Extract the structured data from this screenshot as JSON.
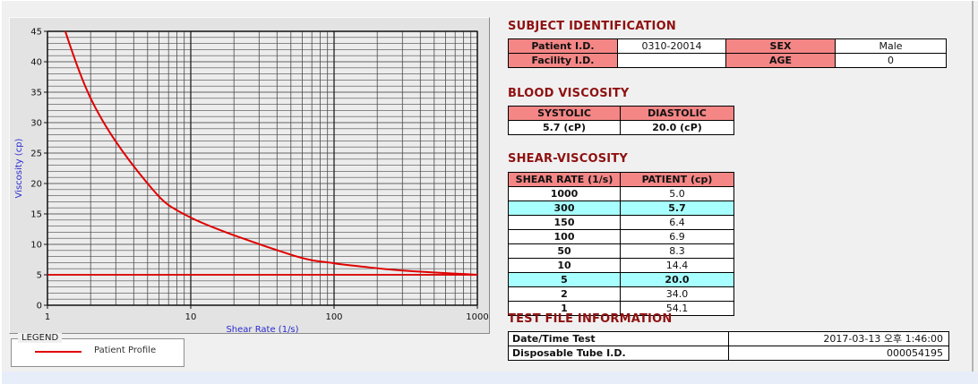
{
  "legend": {
    "box_label": "LEGEND",
    "series_label": "Patient Profile"
  },
  "colors": {
    "section_title": "#8f1010",
    "table_header_bg": "#f48686",
    "highlight_bg": "#a8ffff",
    "axis_label": "#2a2ad2",
    "curve": "#e00000"
  },
  "sections": {
    "subject": {
      "title": "SUBJECT IDENTIFICATION",
      "rows": [
        [
          "Patient I.D.",
          "0310-20014",
          "SEX",
          "Male"
        ],
        [
          "Facility I.D.",
          "",
          "AGE",
          "0"
        ]
      ]
    },
    "blood": {
      "title": "BLOOD VISCOSITY",
      "headers": [
        "SYSTOLIC",
        "DIASTOLIC"
      ],
      "values": [
        "5.7 (cP)",
        "20.0 (cP)"
      ]
    },
    "shear": {
      "title": "SHEAR-VISCOSITY",
      "headers": [
        "SHEAR RATE (1/s)",
        "PATIENT (cp)"
      ],
      "rows": [
        {
          "rate": "1000",
          "value": "5.0",
          "highlight": false
        },
        {
          "rate": "300",
          "value": "5.7",
          "highlight": true
        },
        {
          "rate": "150",
          "value": "6.4",
          "highlight": false
        },
        {
          "rate": "100",
          "value": "6.9",
          "highlight": false
        },
        {
          "rate": "50",
          "value": "8.3",
          "highlight": false
        },
        {
          "rate": "10",
          "value": "14.4",
          "highlight": false
        },
        {
          "rate": "5",
          "value": "20.0",
          "highlight": true
        },
        {
          "rate": "2",
          "value": "34.0",
          "highlight": false
        },
        {
          "rate": "1",
          "value": "54.1",
          "highlight": false
        }
      ]
    },
    "test": {
      "title": "TEST FILE INFORMATION",
      "rows": [
        {
          "label": "Date/Time Test",
          "value": "2017-03-13  오후 1:46:00"
        },
        {
          "label": "Disposable Tube I.D.",
          "value": "000054195"
        }
      ]
    }
  },
  "chart_data": {
    "type": "line",
    "title": "",
    "xlabel": "Shear Rate (1/s)",
    "ylabel": "Viscosity (cp)",
    "x_scale": "log",
    "xlim": [
      1,
      1000
    ],
    "ylim": [
      0,
      45
    ],
    "x_ticks": [
      1,
      10,
      100,
      1000
    ],
    "y_ticks": [
      0,
      5,
      10,
      15,
      20,
      25,
      30,
      35,
      40,
      45
    ],
    "grid": true,
    "legend_position": "below-left",
    "series": [
      {
        "name": "Patient Profile",
        "color": "#e00000",
        "x": [
          1,
          2,
          5,
          10,
          50,
          100,
          150,
          300,
          1000
        ],
        "y": [
          54.1,
          34.0,
          20.0,
          14.4,
          8.3,
          6.9,
          6.4,
          5.7,
          5.0
        ]
      }
    ],
    "reference_line": {
      "y": 5.0,
      "color": "#e00000"
    }
  }
}
